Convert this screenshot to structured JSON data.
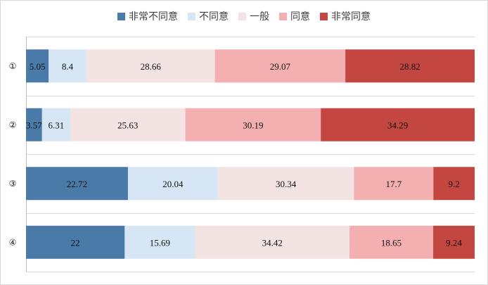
{
  "chart_data": {
    "type": "bar",
    "orientation": "horizontal",
    "stacked": "100%",
    "categories": [
      "①",
      "②",
      "③",
      "④"
    ],
    "series": [
      {
        "name": "非常不同意",
        "color": "#4a7aa7",
        "values": [
          5.05,
          3.57,
          22.72,
          22
        ]
      },
      {
        "name": "不同意",
        "color": "#d6e6f4",
        "values": [
          8.4,
          6.31,
          20.04,
          15.69
        ]
      },
      {
        "name": "一般",
        "color": "#f3e3e3",
        "values": [
          28.66,
          25.63,
          30.34,
          34.42
        ]
      },
      {
        "name": "同意",
        "color": "#f4b0b0",
        "values": [
          29.07,
          30.19,
          17.7,
          18.65
        ]
      },
      {
        "name": "非常同意",
        "color": "#c44640",
        "values": [
          28.82,
          34.29,
          9.2,
          9.24
        ]
      }
    ],
    "data_labels": [
      [
        "5.05",
        "8.4",
        "28.66",
        "29.07",
        "28.82"
      ],
      [
        "3.57",
        "6.31",
        "25.63",
        "30.19",
        "34.29"
      ],
      [
        "22.72",
        "20.04",
        "30.34",
        "17.7",
        "9.2"
      ],
      [
        "22",
        "15.69",
        "34.42",
        "18.65",
        "9.24"
      ]
    ],
    "legend_position": "top",
    "grid": true
  }
}
